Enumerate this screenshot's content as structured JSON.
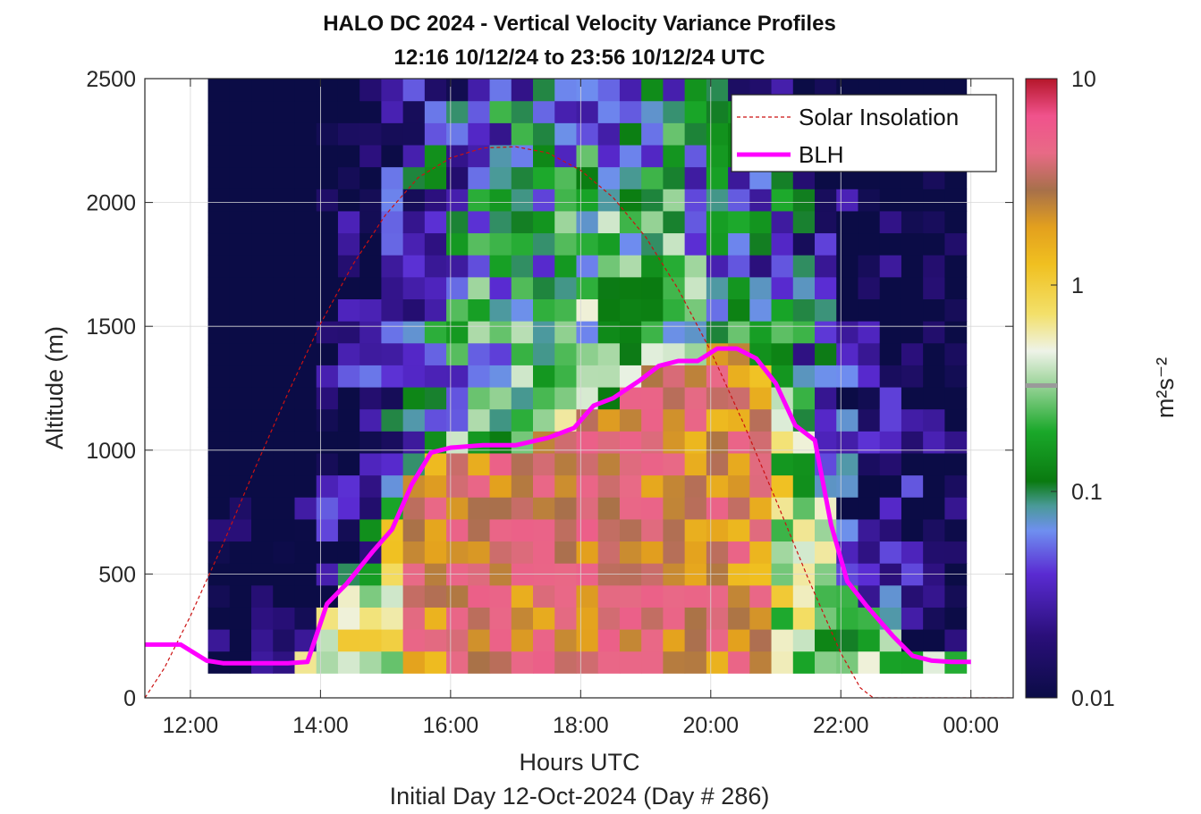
{
  "chart_data": {
    "type": "heatmap",
    "title": "HALO DC 2024 - Vertical Velocity Variance Profiles",
    "subtitle": "12:16 10/12/24 to 23:56 10/12/24  UTC",
    "xlabel": "Hours UTC",
    "ylabel": "Altitude (m)",
    "footer": "Initial Day 12-Oct-2024 (Day # 286)",
    "xlim": [
      11.3,
      24.65
    ],
    "ylim": [
      0,
      2500
    ],
    "x_ticks": [
      {
        "value": 12,
        "label": "12:00"
      },
      {
        "value": 14,
        "label": "14:00"
      },
      {
        "value": 16,
        "label": "16:00"
      },
      {
        "value": 18,
        "label": "18:00"
      },
      {
        "value": 20,
        "label": "20:00"
      },
      {
        "value": 22,
        "label": "22:00"
      },
      {
        "value": 24,
        "label": "00:00"
      }
    ],
    "y_ticks": [
      {
        "value": 0,
        "label": "0"
      },
      {
        "value": 500,
        "label": "500"
      },
      {
        "value": 1000,
        "label": "1000"
      },
      {
        "value": 1500,
        "label": "1500"
      },
      {
        "value": 2000,
        "label": "2000"
      },
      {
        "value": 2500,
        "label": "2500"
      }
    ],
    "grid": true,
    "legend_position": "top-right",
    "colorbar": {
      "scale": "log",
      "range": [
        0.01,
        10
      ],
      "unit_label": "m²s⁻²",
      "ticks": [
        {
          "value": 10,
          "label": "10"
        },
        {
          "value": 1,
          "label": "1"
        },
        {
          "value": 0.1,
          "label": "0.1"
        },
        {
          "value": 0.01,
          "label": "0.01"
        }
      ]
    },
    "heatmap": {
      "x_start": 12.27,
      "x_end": 23.93,
      "y_start": 100,
      "y_end": 2500,
      "value_scale": "log10 of variance (m^2 s^-2)"
    },
    "series": [
      {
        "name": "Solar Insolation",
        "color": "#cc1111",
        "style": "dashed",
        "x": [
          11.3,
          11.6,
          12.0,
          12.5,
          13.0,
          13.5,
          14.0,
          14.5,
          15.0,
          15.5,
          16.0,
          16.5,
          17.0,
          17.5,
          18.0,
          18.5,
          19.0,
          19.5,
          20.0,
          20.5,
          21.0,
          21.5,
          22.0,
          22.3,
          22.5,
          22.55,
          23.0,
          24.0,
          24.65
        ],
        "y": [
          0,
          120,
          330,
          620,
          930,
          1230,
          1510,
          1750,
          1950,
          2100,
          2180,
          2220,
          2225,
          2200,
          2130,
          2020,
          1860,
          1650,
          1400,
          1110,
          800,
          480,
          180,
          40,
          0,
          0,
          0,
          0,
          0
        ]
      },
      {
        "name": "BLH",
        "color": "#ff00ff",
        "style": "solid",
        "x": [
          11.3,
          11.85,
          12.25,
          12.5,
          13.0,
          13.5,
          13.8,
          14.1,
          14.4,
          14.8,
          15.1,
          15.4,
          15.7,
          16.0,
          16.5,
          17.0,
          17.5,
          17.9,
          18.2,
          18.5,
          18.9,
          19.2,
          19.5,
          19.8,
          20.1,
          20.4,
          20.7,
          21.0,
          21.3,
          21.6,
          21.85,
          22.1,
          22.4,
          22.8,
          23.1,
          23.4,
          23.7,
          24.0
        ],
        "y": [
          215,
          215,
          150,
          140,
          140,
          140,
          145,
          380,
          460,
          590,
          680,
          860,
          990,
          1010,
          1020,
          1020,
          1050,
          1090,
          1180,
          1210,
          1280,
          1340,
          1360,
          1360,
          1410,
          1410,
          1370,
          1270,
          1100,
          1040,
          700,
          470,
          370,
          250,
          170,
          150,
          145,
          145
        ]
      }
    ]
  }
}
